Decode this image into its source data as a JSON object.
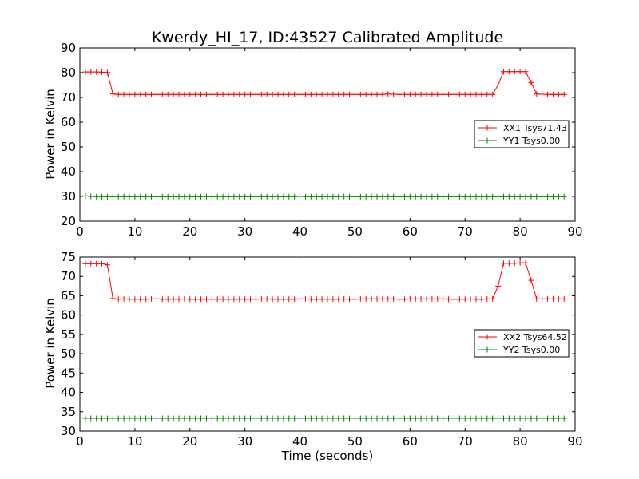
{
  "figure_title": "Kwerdy_HI_17, ID:43527 Calibrated Amplitude",
  "chart_data": [
    {
      "type": "line",
      "title": "Kwerdy_HI_17, ID:43527 Calibrated Amplitude",
      "xlabel": "",
      "ylabel": "Power in Kelvin",
      "xlim": [
        0,
        90
      ],
      "ylim": [
        20,
        90
      ],
      "xticks": [
        0,
        10,
        20,
        30,
        40,
        50,
        60,
        70,
        80,
        90
      ],
      "yticks": [
        20,
        30,
        40,
        50,
        60,
        70,
        80,
        90
      ],
      "grid": false,
      "legend_position": "right",
      "series": [
        {
          "name": "XX1 Tsys71.43",
          "color": "#ff0000",
          "x": [
            1,
            2,
            3,
            4,
            5,
            6,
            7,
            8,
            9,
            10,
            11,
            12,
            13,
            14,
            15,
            16,
            17,
            18,
            19,
            20,
            21,
            22,
            23,
            24,
            25,
            26,
            27,
            28,
            29,
            30,
            31,
            32,
            33,
            34,
            35,
            36,
            37,
            38,
            39,
            40,
            41,
            42,
            43,
            44,
            45,
            46,
            47,
            48,
            49,
            50,
            51,
            52,
            53,
            54,
            55,
            56,
            57,
            58,
            59,
            60,
            61,
            62,
            63,
            64,
            65,
            66,
            67,
            68,
            69,
            70,
            71,
            72,
            73,
            74,
            75,
            76,
            77,
            78,
            79,
            80,
            81,
            82,
            83,
            84,
            85,
            86,
            87,
            88
          ],
          "y": [
            80.3,
            80.3,
            80.3,
            80.2,
            80.1,
            71.4,
            71.2,
            71.2,
            71.2,
            71.2,
            71.2,
            71.2,
            71.2,
            71.2,
            71.2,
            71.2,
            71.2,
            71.2,
            71.2,
            71.2,
            71.2,
            71.2,
            71.2,
            71.2,
            71.2,
            71.2,
            71.2,
            71.2,
            71.2,
            71.2,
            71.2,
            71.2,
            71.2,
            71.2,
            71.2,
            71.2,
            71.2,
            71.2,
            71.2,
            71.2,
            71.2,
            71.2,
            71.2,
            71.2,
            71.2,
            71.2,
            71.2,
            71.2,
            71.2,
            71.2,
            71.2,
            71.2,
            71.2,
            71.2,
            71.2,
            71.4,
            71.3,
            71.2,
            71.2,
            71.2,
            71.2,
            71.2,
            71.2,
            71.2,
            71.2,
            71.2,
            71.2,
            71.2,
            71.2,
            71.2,
            71.2,
            71.2,
            71.2,
            71.2,
            71.2,
            75.0,
            80.4,
            80.4,
            80.4,
            80.4,
            80.4,
            76.0,
            71.4,
            71.3,
            71.2,
            71.2,
            71.2,
            71.2
          ]
        },
        {
          "name": "YY1 Tsys0.00",
          "color": "#008000",
          "x": [
            1,
            2,
            3,
            4,
            5,
            6,
            7,
            8,
            9,
            10,
            11,
            12,
            13,
            14,
            15,
            16,
            17,
            18,
            19,
            20,
            21,
            22,
            23,
            24,
            25,
            26,
            27,
            28,
            29,
            30,
            31,
            32,
            33,
            34,
            35,
            36,
            37,
            38,
            39,
            40,
            41,
            42,
            43,
            44,
            45,
            46,
            47,
            48,
            49,
            50,
            51,
            52,
            53,
            54,
            55,
            56,
            57,
            58,
            59,
            60,
            61,
            62,
            63,
            64,
            65,
            66,
            67,
            68,
            69,
            70,
            71,
            72,
            73,
            74,
            75,
            76,
            77,
            78,
            79,
            80,
            81,
            82,
            83,
            84,
            85,
            86,
            87,
            88
          ],
          "y": [
            30.2,
            30.0,
            29.9,
            29.9,
            29.9,
            29.9,
            29.9,
            29.9,
            29.9,
            29.9,
            29.9,
            29.9,
            29.9,
            29.9,
            29.9,
            29.9,
            29.9,
            29.9,
            29.9,
            29.9,
            29.9,
            29.9,
            29.9,
            29.9,
            29.9,
            29.9,
            29.9,
            29.9,
            29.9,
            29.9,
            29.9,
            29.9,
            29.9,
            29.9,
            29.9,
            29.9,
            29.9,
            29.9,
            29.9,
            30.1,
            29.9,
            29.9,
            29.9,
            29.9,
            29.9,
            29.9,
            29.9,
            30.0,
            29.9,
            29.9,
            29.9,
            29.9,
            29.9,
            29.9,
            29.9,
            29.9,
            29.9,
            29.9,
            29.9,
            29.9,
            29.9,
            29.9,
            29.9,
            29.9,
            29.9,
            29.9,
            29.9,
            29.9,
            29.9,
            29.9,
            29.9,
            29.9,
            29.9,
            29.9,
            29.9,
            29.9,
            29.9,
            29.9,
            29.9,
            29.9,
            29.9,
            29.9,
            29.9,
            29.9,
            29.9,
            29.9,
            29.9,
            29.9
          ]
        }
      ]
    },
    {
      "type": "line",
      "title": "",
      "xlabel": "Time (seconds)",
      "ylabel": "Power in Kelvin",
      "xlim": [
        0,
        90
      ],
      "ylim": [
        30,
        75
      ],
      "xticks": [
        0,
        10,
        20,
        30,
        40,
        50,
        60,
        70,
        80,
        90
      ],
      "yticks": [
        30,
        35,
        40,
        45,
        50,
        55,
        60,
        65,
        70,
        75
      ],
      "grid": false,
      "legend_position": "right",
      "series": [
        {
          "name": "XX2 Tsys64.52",
          "color": "#ff0000",
          "x": [
            1,
            2,
            3,
            4,
            5,
            6,
            7,
            8,
            9,
            10,
            11,
            12,
            13,
            14,
            15,
            16,
            17,
            18,
            19,
            20,
            21,
            22,
            23,
            24,
            25,
            26,
            27,
            28,
            29,
            30,
            31,
            32,
            33,
            34,
            35,
            36,
            37,
            38,
            39,
            40,
            41,
            42,
            43,
            44,
            45,
            46,
            47,
            48,
            49,
            50,
            51,
            52,
            53,
            54,
            55,
            56,
            57,
            58,
            59,
            60,
            61,
            62,
            63,
            64,
            65,
            66,
            67,
            68,
            69,
            70,
            71,
            72,
            73,
            74,
            75,
            76,
            77,
            78,
            79,
            80,
            81,
            82,
            83,
            84,
            85,
            86,
            87,
            88
          ],
          "y": [
            73.3,
            73.3,
            73.3,
            73.3,
            73.0,
            64.3,
            64.1,
            64.2,
            64.1,
            64.1,
            64.1,
            64.1,
            64.2,
            64.2,
            64.1,
            64.1,
            64.1,
            64.1,
            64.2,
            64.1,
            64.1,
            64.1,
            64.1,
            64.1,
            64.1,
            64.1,
            64.1,
            64.1,
            64.1,
            64.1,
            64.1,
            64.1,
            64.2,
            64.2,
            64.1,
            64.1,
            64.1,
            64.1,
            64.1,
            64.2,
            64.2,
            64.1,
            64.1,
            64.1,
            64.1,
            64.1,
            64.1,
            64.2,
            64.1,
            64.1,
            64.2,
            64.2,
            64.2,
            64.2,
            64.2,
            64.2,
            64.2,
            64.1,
            64.1,
            64.2,
            64.2,
            64.2,
            64.2,
            64.2,
            64.2,
            64.2,
            64.1,
            64.1,
            64.1,
            64.1,
            64.2,
            64.1,
            64.1,
            64.2,
            64.2,
            67.5,
            73.4,
            73.4,
            73.4,
            73.5,
            73.5,
            69.0,
            64.2,
            64.2,
            64.2,
            64.2,
            64.2,
            64.2
          ]
        },
        {
          "name": "YY2 Tsys0.00",
          "color": "#008000",
          "x": [
            1,
            2,
            3,
            4,
            5,
            6,
            7,
            8,
            9,
            10,
            11,
            12,
            13,
            14,
            15,
            16,
            17,
            18,
            19,
            20,
            21,
            22,
            23,
            24,
            25,
            26,
            27,
            28,
            29,
            30,
            31,
            32,
            33,
            34,
            35,
            36,
            37,
            38,
            39,
            40,
            41,
            42,
            43,
            44,
            45,
            46,
            47,
            48,
            49,
            50,
            51,
            52,
            53,
            54,
            55,
            56,
            57,
            58,
            59,
            60,
            61,
            62,
            63,
            64,
            65,
            66,
            67,
            68,
            69,
            70,
            71,
            72,
            73,
            74,
            75,
            76,
            77,
            78,
            79,
            80,
            81,
            82,
            83,
            84,
            85,
            86,
            87,
            88
          ],
          "y": [
            33.3,
            33.3,
            33.3,
            33.3,
            33.3,
            33.3,
            33.3,
            33.3,
            33.3,
            33.3,
            33.3,
            33.3,
            33.3,
            33.3,
            33.3,
            33.3,
            33.3,
            33.3,
            33.3,
            33.3,
            33.3,
            33.3,
            33.3,
            33.3,
            33.3,
            33.3,
            33.3,
            33.3,
            33.3,
            33.3,
            33.3,
            33.3,
            33.3,
            33.3,
            33.3,
            33.3,
            33.3,
            33.3,
            33.3,
            33.3,
            33.3,
            33.3,
            33.3,
            33.3,
            33.3,
            33.3,
            33.3,
            33.3,
            33.3,
            33.3,
            33.3,
            33.3,
            33.3,
            33.3,
            33.3,
            33.3,
            33.3,
            33.3,
            33.3,
            33.3,
            33.3,
            33.3,
            33.3,
            33.3,
            33.3,
            33.3,
            33.3,
            33.3,
            33.3,
            33.3,
            33.3,
            33.3,
            33.3,
            33.3,
            33.3,
            33.3,
            33.3,
            33.3,
            33.3,
            33.3,
            33.3,
            33.3,
            33.3,
            33.3,
            33.3,
            33.3,
            33.3,
            33.3
          ]
        }
      ]
    }
  ]
}
